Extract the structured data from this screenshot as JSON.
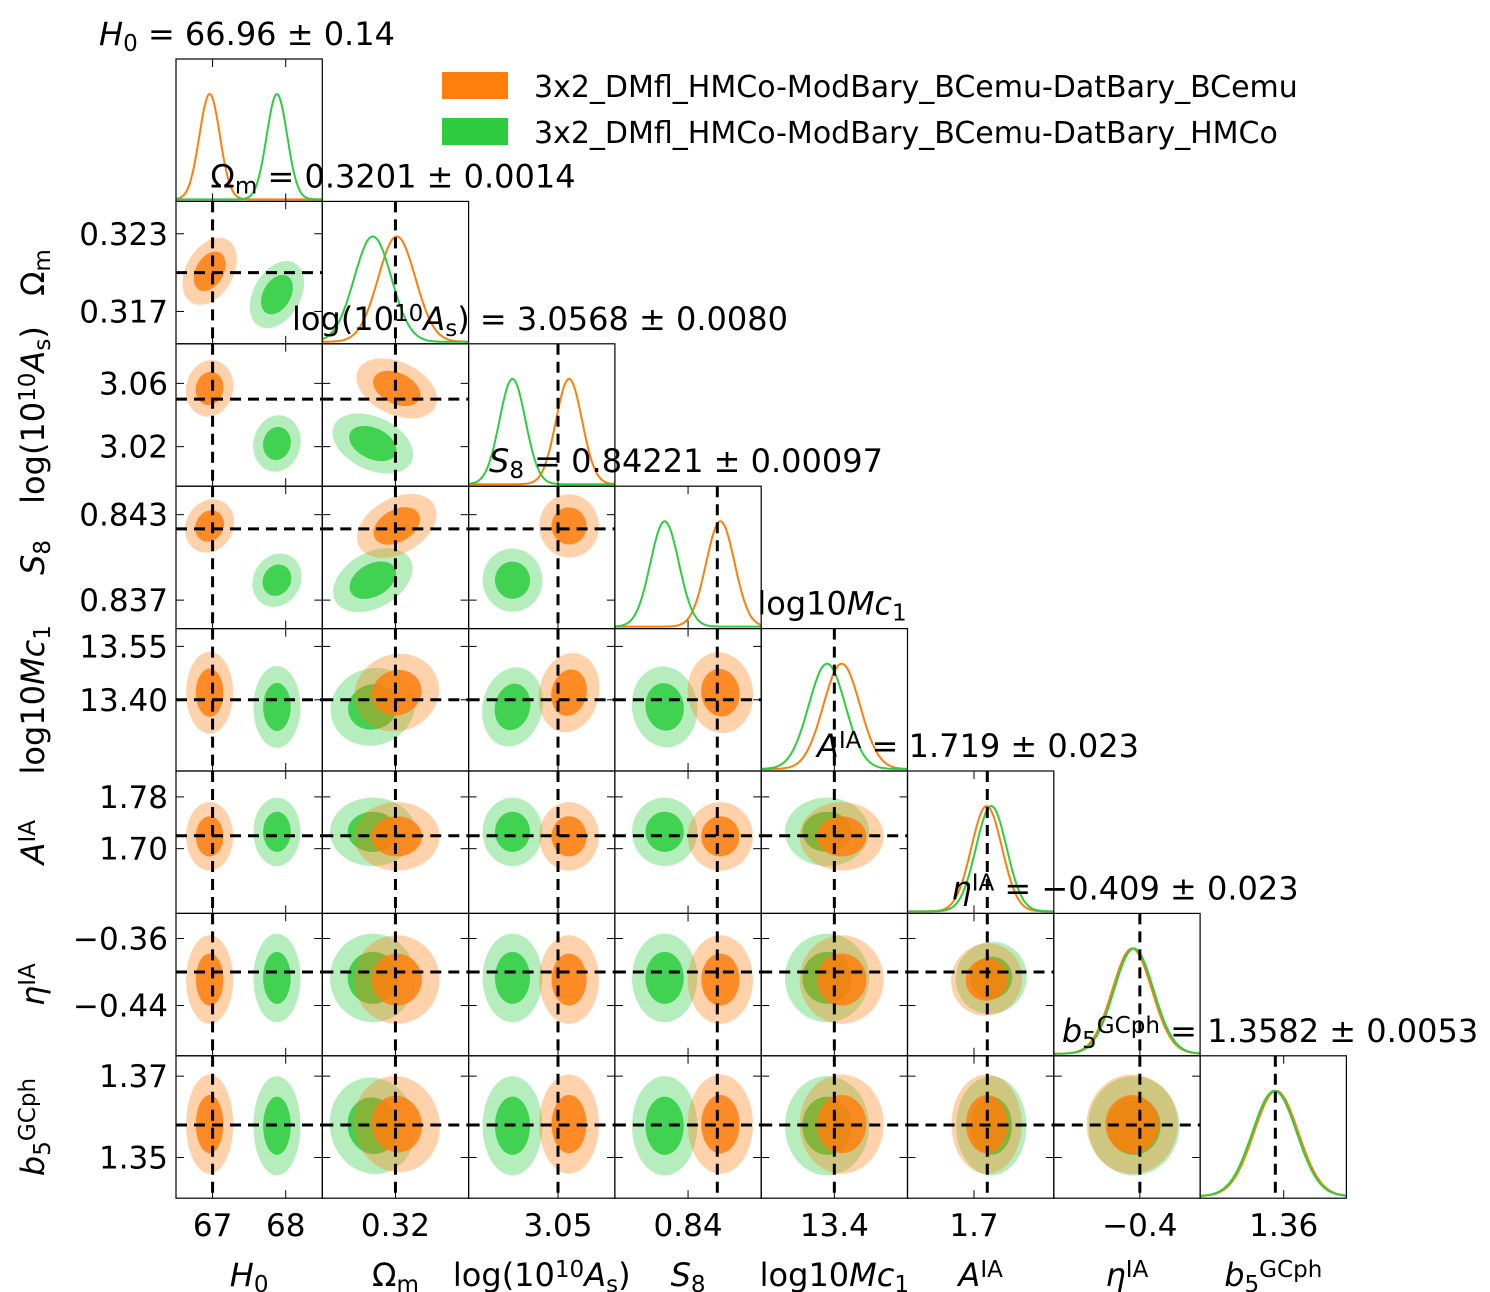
{
  "chart_data": {
    "type": "corner",
    "colors": {
      "orange": "#ff7f0e",
      "green": "#2ecc40",
      "orange_light": "#f9c08e",
      "green_light": "#9fe0a8",
      "axis": "#000000"
    },
    "legend": [
      {
        "label": "3x2_DMfl_HMCo-ModBary_BCemu-DatBary_BCemu",
        "color": "#ff7f0e"
      },
      {
        "label": "3x2_DMfl_HMCo-ModBary_BCemu-DatBary_HMCo",
        "color": "#2ecc40"
      }
    ],
    "parameters": [
      {
        "key": "H0",
        "title": "H0 = 66.96 ± 0.14",
        "label": "H0",
        "fiducial": 67.0,
        "range": [
          66.5,
          68.5
        ],
        "orange": {
          "mean": 66.96,
          "sd": 0.14
        },
        "green": {
          "mean": 67.88,
          "sd": 0.14
        },
        "ticks": [
          "67",
          "68"
        ],
        "tick_values": [
          67.0,
          68.0
        ]
      },
      {
        "key": "Om",
        "title": "Ωm = 0.3201 ± 0.0014",
        "label": "Ωm",
        "fiducial": 0.32,
        "range": [
          0.3145,
          0.3255
        ],
        "orange": {
          "mean": 0.3201,
          "sd": 0.0014
        },
        "green": {
          "mean": 0.3183,
          "sd": 0.0014
        },
        "ticks": [
          "0.323",
          "0.317"
        ],
        "tick_values": [
          0.323,
          0.317
        ],
        "x_ticks": [
          "0.32"
        ],
        "x_tick_values": [
          0.32
        ]
      },
      {
        "key": "logAs",
        "title": "log(10¹⁰As) = 3.0568 ± 0.0080",
        "label": "log(10¹⁰As)",
        "fiducial": 3.05,
        "range": [
          2.995,
          3.085
        ],
        "orange": {
          "mean": 3.0568,
          "sd": 0.008
        },
        "green": {
          "mean": 3.022,
          "sd": 0.008
        },
        "ticks": [
          "3.06",
          "3.02"
        ],
        "tick_values": [
          3.06,
          3.02
        ],
        "x_ticks": [
          "3.05"
        ],
        "x_tick_values": [
          3.05
        ]
      },
      {
        "key": "S8",
        "title": "S8 = 0.84221 ± 0.00097",
        "label": "S8",
        "fiducial": 0.842,
        "range": [
          0.835,
          0.845
        ],
        "orange": {
          "mean": 0.84221,
          "sd": 0.00097
        },
        "green": {
          "mean": 0.8384,
          "sd": 0.00097
        },
        "ticks": [
          "0.843",
          "0.837"
        ],
        "tick_values": [
          0.843,
          0.837
        ],
        "x_ticks": [
          "0.84"
        ],
        "x_tick_values": [
          0.84
        ]
      },
      {
        "key": "log10Mc1",
        "title": "log10Mc1",
        "label": "log10Mc1",
        "fiducial": 13.4,
        "range": [
          13.2,
          13.6
        ],
        "orange": {
          "mean": 13.42,
          "sd": 0.05
        },
        "green": {
          "mean": 13.38,
          "sd": 0.05
        },
        "ticks": [
          "13.55",
          "13.40"
        ],
        "tick_values": [
          13.55,
          13.4
        ],
        "x_ticks": [
          "13.4"
        ],
        "x_tick_values": [
          13.4
        ]
      },
      {
        "key": "AIA",
        "title": "AIA = 1.719 ± 0.023",
        "label": "AIA",
        "fiducial": 1.72,
        "range": [
          1.6,
          1.82
        ],
        "orange": {
          "mean": 1.719,
          "sd": 0.023
        },
        "green": {
          "mean": 1.726,
          "sd": 0.023
        },
        "ticks": [
          "1.78",
          "1.70"
        ],
        "tick_values": [
          1.78,
          1.7
        ],
        "x_ticks": [
          "1.7"
        ],
        "x_tick_values": [
          1.7
        ]
      },
      {
        "key": "etaIA",
        "title": "ηIA = −0.409 ± 0.023",
        "label": "ηIA",
        "fiducial": -0.4,
        "range": [
          -0.5,
          -0.33
        ],
        "orange": {
          "mean": -0.409,
          "sd": 0.023
        },
        "green": {
          "mean": -0.407,
          "sd": 0.023
        },
        "ticks": [
          "−0.36",
          "−0.44"
        ],
        "tick_values": [
          -0.36,
          -0.44
        ],
        "x_ticks": [
          "−0.4"
        ],
        "x_tick_values": [
          -0.4
        ]
      },
      {
        "key": "b5",
        "title": "b5GCph = 1.3582 ± 0.0053",
        "label": "b5GCph",
        "fiducial": 1.358,
        "range": [
          1.34,
          1.375
        ],
        "orange": {
          "mean": 1.3582,
          "sd": 0.0053
        },
        "green": {
          "mean": 1.3578,
          "sd": 0.0053
        },
        "ticks": [
          "1.37",
          "1.35"
        ],
        "tick_values": [
          1.37,
          1.35
        ],
        "x_ticks": [
          "1.36"
        ],
        "x_tick_values": [
          1.36
        ]
      }
    ]
  }
}
